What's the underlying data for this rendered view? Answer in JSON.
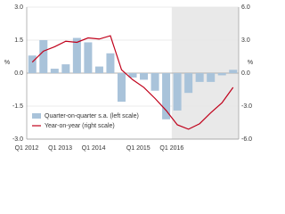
{
  "chart_data": {
    "type": "bar_line",
    "categories": [
      "Q1 2012",
      null,
      null,
      "Q1 2013",
      null,
      null,
      "Q1 2014",
      null,
      null,
      null,
      "Q1 2015",
      null,
      null,
      "Q1 2016",
      null,
      null,
      null,
      null,
      null
    ],
    "series": [
      {
        "name": "Quarter-on-quarter s.a. (left scale)",
        "type": "bar",
        "color": "#a9c3da",
        "axis": "y",
        "values": [
          0.8,
          1.5,
          0.2,
          0.4,
          1.6,
          1.4,
          0.3,
          0.9,
          -1.3,
          -0.2,
          -0.3,
          -0.8,
          -2.1,
          -1.7,
          -0.9,
          -0.4,
          -0.4,
          -0.1,
          0.15
        ]
      },
      {
        "name": "Year-on-year (right scale)",
        "type": "line",
        "color": "#c0001a",
        "axis": "y2",
        "values": [
          1.0,
          2.0,
          2.4,
          2.9,
          2.8,
          3.2,
          3.1,
          3.4,
          0.3,
          -0.6,
          -1.3,
          -2.3,
          -3.4,
          -4.7,
          -5.1,
          -4.6,
          -3.6,
          -2.7,
          -1.3
        ]
      }
    ],
    "ylabel": "%",
    "y2label": "%",
    "ylim": [
      -3,
      3
    ],
    "yticks": [
      {
        "value": -3,
        "label": "-3.0"
      },
      {
        "value": -1.5,
        "label": "-1.5"
      },
      {
        "value": 0,
        "label": "0.0"
      },
      {
        "value": 1.5,
        "label": "1.5"
      },
      {
        "value": 3,
        "label": "3.0"
      }
    ],
    "y2lim": [
      -6,
      6
    ],
    "y2ticks": [
      {
        "value": -6,
        "label": "-6.0"
      },
      {
        "value": -3,
        "label": "-3.0"
      },
      {
        "value": 0,
        "label": "0.0"
      },
      {
        "value": 3,
        "label": "3.0"
      },
      {
        "value": 6,
        "label": "6.0"
      }
    ],
    "grid": true,
    "legend": "lower left",
    "shade_from": "Q1 2016",
    "shade_color": "#e9e9e9"
  }
}
